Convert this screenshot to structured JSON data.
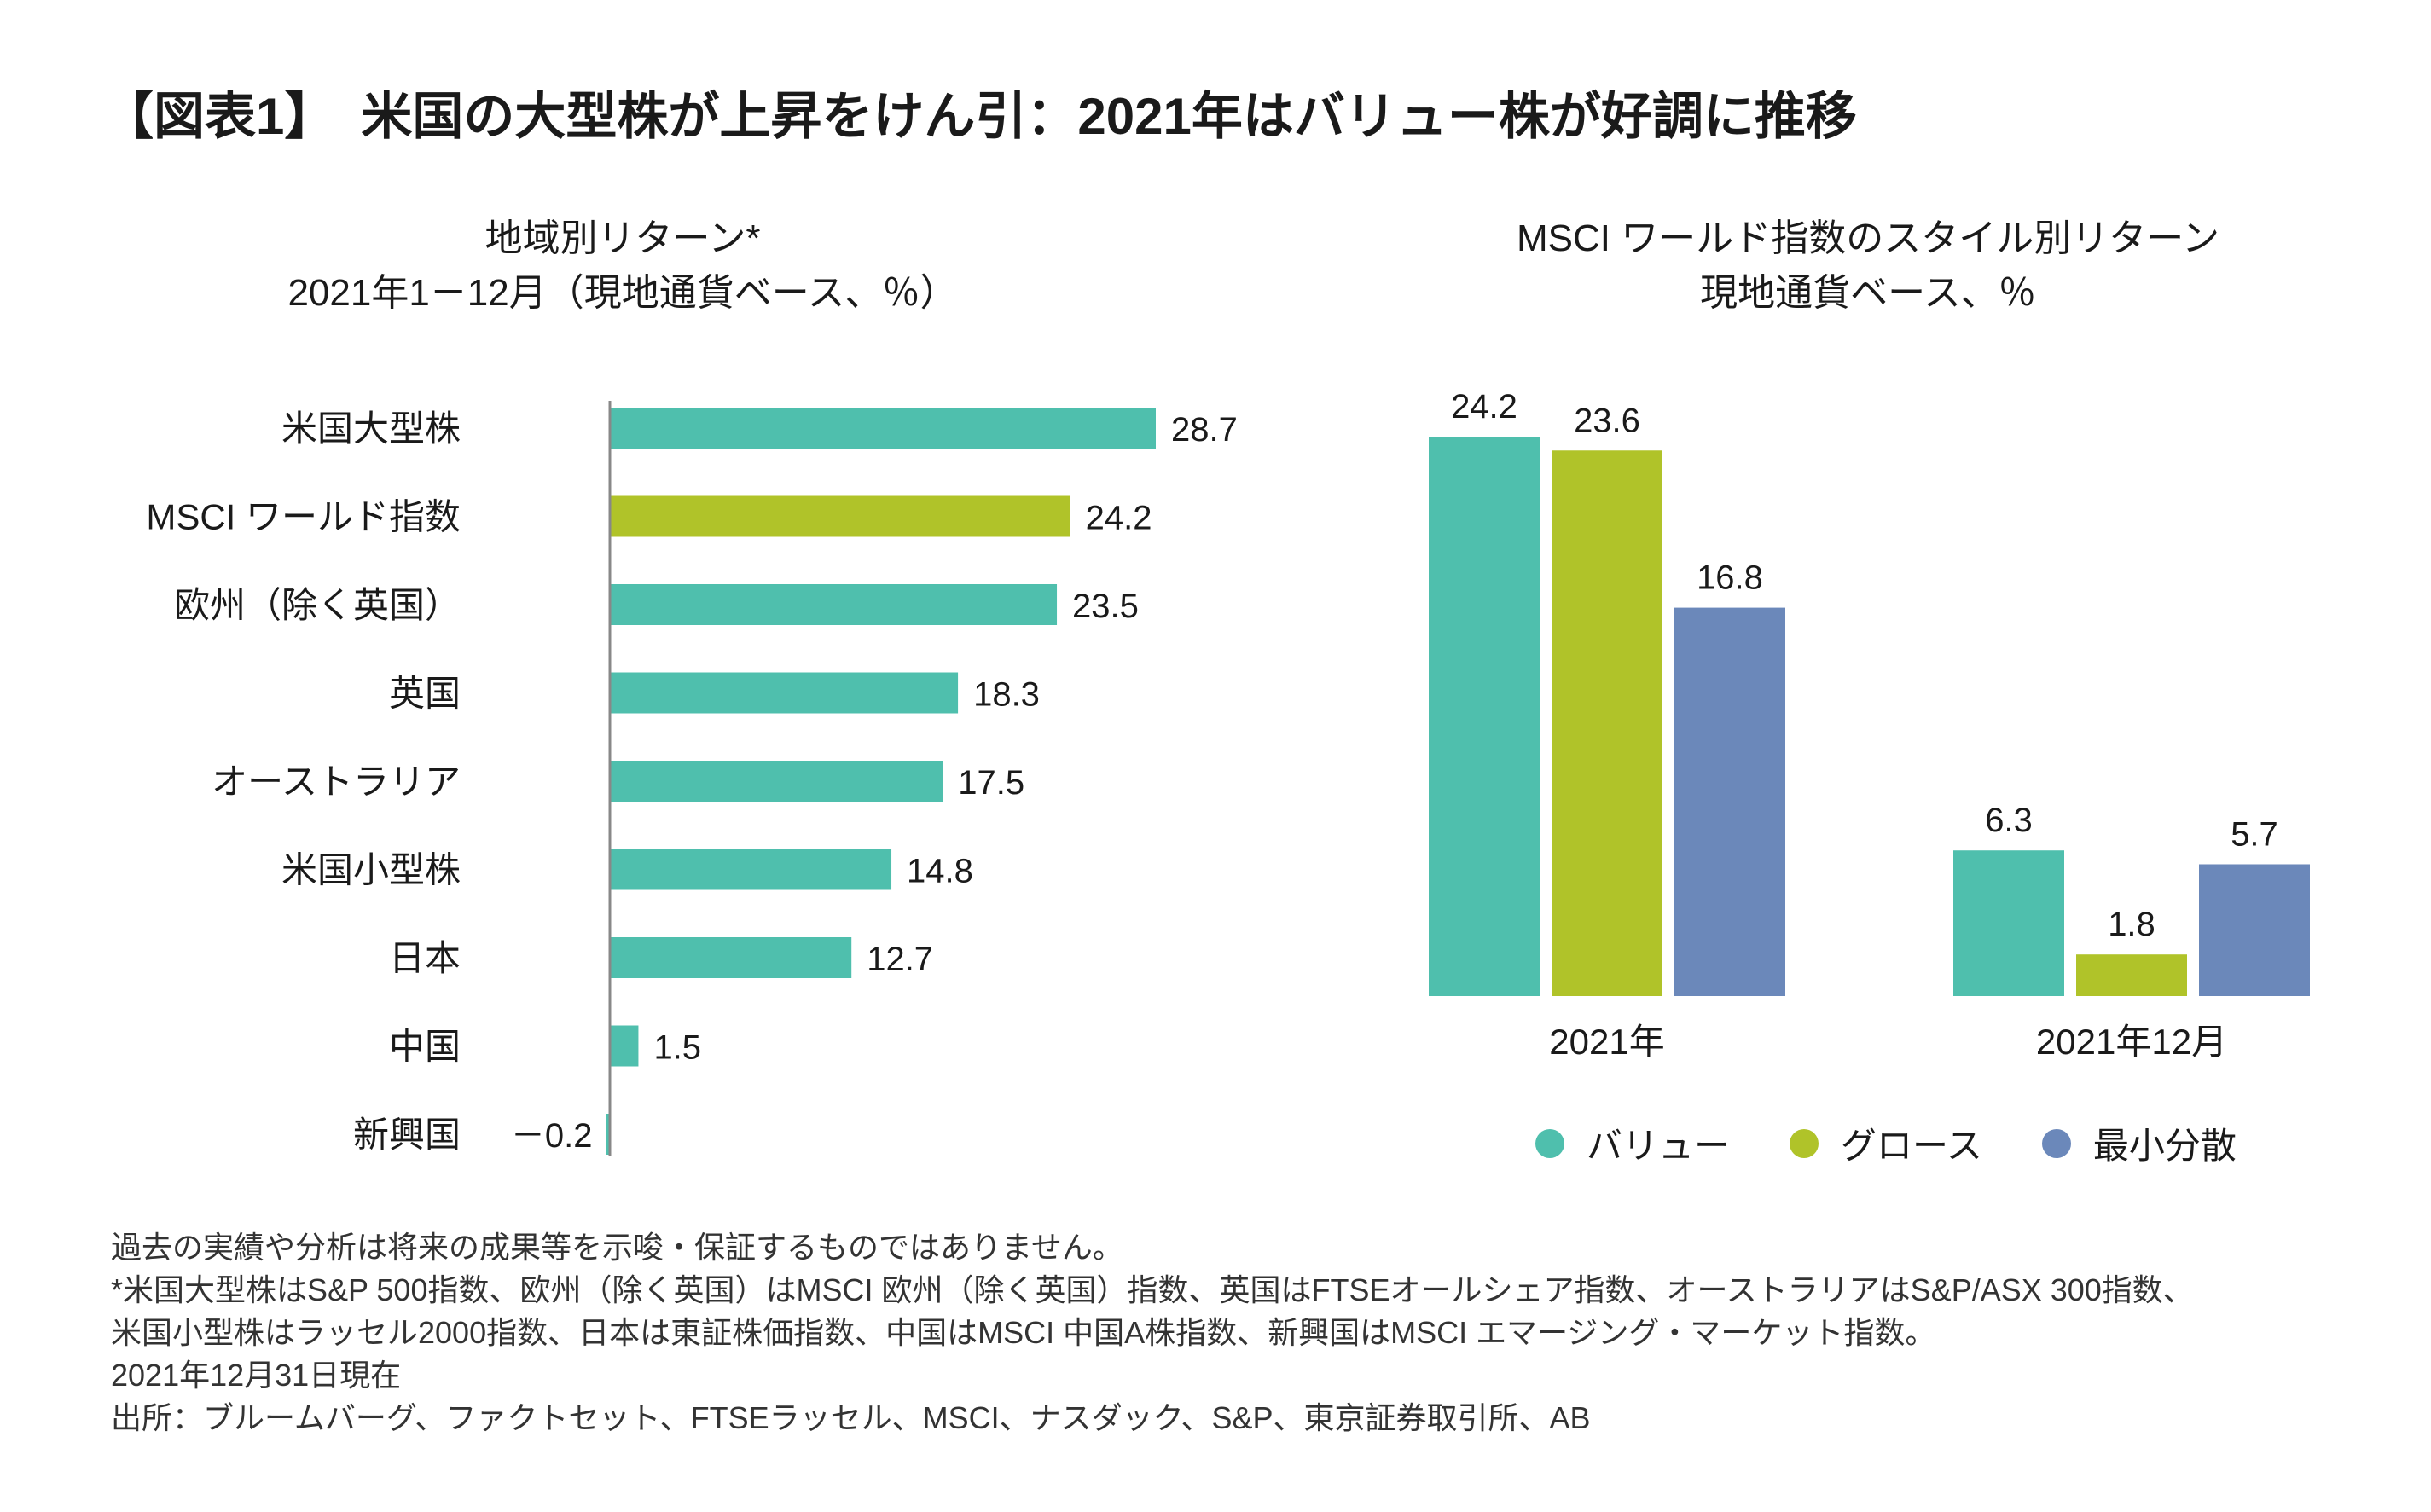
{
  "title": "【図表1】　米国の大型株が上昇をけん引：2021年はバリュー株が好調に推移",
  "colors": {
    "teal": "#4fbfad",
    "lime": "#b0c329",
    "blue": "#6b88ba",
    "axis": "#888888"
  },
  "chart_data": [
    {
      "type": "bar",
      "orientation": "horizontal",
      "title": "地域別リターン*",
      "subtitle": "2021年1－12月（現地通貨ベース、％）",
      "categories": [
        "米国大型株",
        "MSCI ワールド指数",
        "欧州（除く英国）",
        "英国",
        "オーストラリア",
        "米国小型株",
        "日本",
        "中国",
        "新興国"
      ],
      "values": [
        28.7,
        24.2,
        23.5,
        18.3,
        17.5,
        14.8,
        12.7,
        1.5,
        -0.2
      ],
      "value_labels": [
        "28.7",
        "24.2",
        "23.5",
        "18.3",
        "17.5",
        "14.8",
        "12.7",
        "1.5",
        "－0.2"
      ],
      "highlight": "MSCI ワールド指数",
      "xlim": [
        -0.2,
        28.7
      ],
      "grid": false
    },
    {
      "type": "bar",
      "orientation": "vertical",
      "title": "MSCI ワールド指数のスタイル別リターン",
      "subtitle": "現地通貨ベース、％",
      "categories": [
        "2021年",
        "2021年12月"
      ],
      "series": [
        {
          "name": "バリュー",
          "values": [
            24.2,
            6.3
          ],
          "color": "#4fbfad"
        },
        {
          "name": "グロース",
          "values": [
            23.6,
            1.8
          ],
          "color": "#b0c329"
        },
        {
          "name": "最小分散",
          "values": [
            16.8,
            5.7
          ],
          "color": "#6b88ba"
        }
      ],
      "ylim": [
        0,
        24.2
      ],
      "legend": "bottom",
      "grid": false
    }
  ],
  "footnotes": [
    "過去の実績や分析は将来の成果等を示唆・保証するものではありません。",
    "*米国大型株はS&P 500指数、欧州（除く英国）はMSCI 欧州（除く英国）指数、英国はFTSEオールシェア指数、オーストラリアはS&P/ASX 300指数、",
    "米国小型株はラッセル2000指数、日本は東証株価指数、中国はMSCI 中国A株指数、新興国はMSCI エマージング・マーケット指数。",
    "2021年12月31日現在",
    "出所：ブルームバーグ、ファクトセット、FTSEラッセル、MSCI、ナスダック、S&P、東京証券取引所、AB"
  ]
}
